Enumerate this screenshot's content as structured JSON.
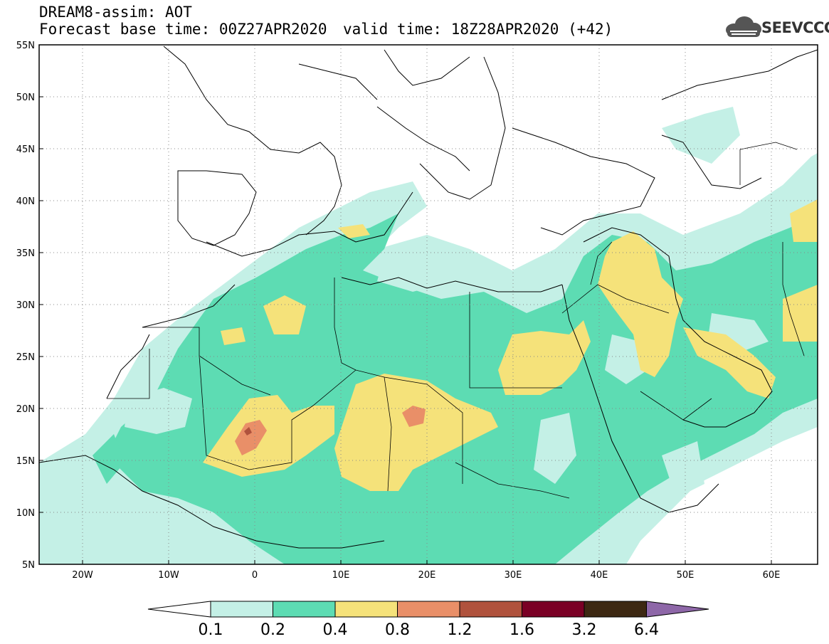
{
  "header": {
    "line1": "DREAM8-assim: AOT",
    "line2": "Forecast base time: 00Z27APR2020",
    "line3": "valid time: 18Z28APR2020 (+42)"
  },
  "logo": {
    "text": "SEEVCCC",
    "icon": "cloud-icon"
  },
  "map": {
    "lat_labels": [
      "55N",
      "50N",
      "45N",
      "40N",
      "35N",
      "30N",
      "25N",
      "20N",
      "15N",
      "10N",
      "5N"
    ],
    "lon_labels": [
      "20W",
      "10W",
      "0",
      "10E",
      "20E",
      "30E",
      "40E",
      "50E",
      "60E"
    ],
    "lon_range": [
      -25,
      65
    ],
    "lat_range": [
      5,
      55
    ]
  },
  "colorbar": {
    "labels": [
      "0.1",
      "0.2",
      "0.4",
      "0.8",
      "1.2",
      "1.6",
      "3.2",
      "6.4"
    ],
    "colors": [
      "#ffffff",
      "#c4f0e6",
      "#5ddcb3",
      "#f5e27a",
      "#e98f68",
      "#b0523d",
      "#7a0025",
      "#3d2812",
      "#8e67a8"
    ]
  }
}
